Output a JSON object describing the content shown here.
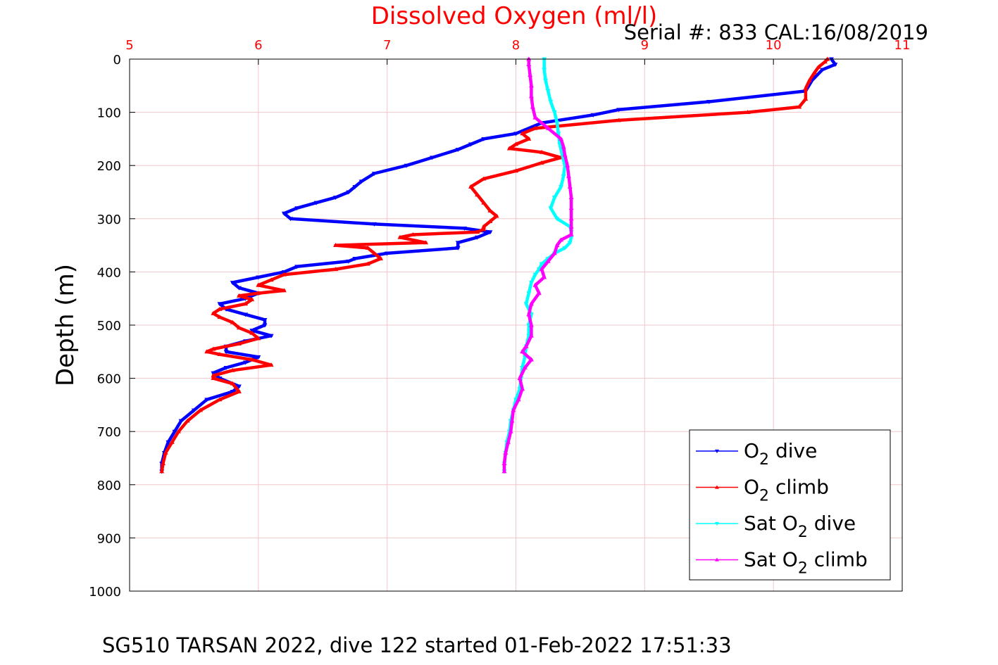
{
  "chart_data": {
    "type": "line",
    "title": "Dissolved Oxygen (ml/l)",
    "serial_text": "Serial #: 833  CAL:16/08/2019",
    "ylabel": "Depth (m)",
    "footer": "SG510 TARSAN 2022, dive 122 started 01-Feb-2022 17:51:33",
    "xlim": [
      5,
      11
    ],
    "ylim": [
      0,
      1000
    ],
    "y_reversed": true,
    "x_axis_position": "top",
    "grid": true,
    "legend_position": "bottom-right",
    "x_ticks": [
      "5",
      "6",
      "7",
      "8",
      "9",
      "10",
      "11"
    ],
    "y_ticks": [
      "0",
      "100",
      "200",
      "300",
      "400",
      "500",
      "600",
      "700",
      "800",
      "900",
      "1000"
    ],
    "colors": {
      "title": "#ff0000",
      "x_ticks": "#ff0000",
      "grid": "#f2c6cc",
      "axis": "#000000"
    },
    "series": [
      {
        "legend": {
          "base": "O",
          "sub": "2",
          "rest": " dive"
        },
        "color": "#0000ff",
        "marker": "triangle-down",
        "depth": [
          0,
          10,
          20,
          40,
          60,
          80,
          95,
          105,
          120,
          140,
          150,
          160,
          170,
          185,
          200,
          215,
          230,
          240,
          250,
          260,
          270,
          280,
          290,
          300,
          310,
          318,
          325,
          335,
          345,
          355,
          365,
          375,
          380,
          390,
          400,
          410,
          420,
          430,
          440,
          450,
          460,
          470,
          480,
          490,
          500,
          510,
          520,
          530,
          540,
          550,
          560,
          570,
          580,
          590,
          600,
          615,
          625,
          640,
          660,
          680,
          700,
          720,
          740,
          760,
          775
        ],
        "values": [
          10.45,
          10.48,
          10.38,
          10.3,
          10.25,
          9.5,
          8.8,
          8.6,
          8.2,
          8.0,
          7.75,
          7.65,
          7.55,
          7.35,
          7.15,
          6.9,
          6.8,
          6.75,
          6.7,
          6.6,
          6.45,
          6.3,
          6.2,
          6.25,
          6.9,
          7.6,
          7.8,
          7.7,
          7.55,
          7.55,
          7.0,
          6.75,
          6.7,
          6.3,
          6.2,
          6.0,
          5.8,
          5.85,
          6.0,
          5.9,
          5.7,
          5.75,
          5.9,
          6.05,
          6.05,
          5.95,
          6.1,
          5.9,
          5.75,
          5.75,
          6.0,
          5.9,
          5.75,
          5.65,
          5.7,
          5.85,
          5.8,
          5.6,
          5.5,
          5.4,
          5.35,
          5.3,
          5.27,
          5.25,
          5.25
        ]
      },
      {
        "legend": {
          "base": "O",
          "sub": "2",
          "rest": " climb"
        },
        "color": "#ff0000",
        "marker": "triangle-up",
        "depth": [
          775,
          760,
          740,
          720,
          700,
          680,
          660,
          640,
          625,
          610,
          600,
          595,
          585,
          575,
          565,
          555,
          550,
          545,
          535,
          525,
          515,
          505,
          495,
          485,
          478,
          470,
          460,
          452,
          445,
          440,
          435,
          425,
          415,
          405,
          395,
          385,
          375,
          365,
          355,
          350,
          345,
          335,
          330,
          325,
          320,
          315,
          305,
          295,
          285,
          270,
          255,
          240,
          225,
          210,
          195,
          185,
          175,
          168,
          160,
          150,
          140,
          130,
          115,
          100,
          90,
          75,
          55,
          40,
          25,
          15,
          5,
          0
        ],
        "values": [
          5.25,
          5.26,
          5.28,
          5.33,
          5.38,
          5.45,
          5.55,
          5.7,
          5.85,
          5.8,
          5.65,
          5.65,
          5.8,
          6.1,
          5.95,
          5.7,
          5.6,
          5.65,
          5.85,
          6.0,
          5.95,
          5.85,
          5.8,
          5.7,
          5.65,
          5.7,
          5.9,
          5.95,
          5.85,
          6.0,
          6.2,
          6.0,
          6.1,
          6.2,
          6.6,
          6.85,
          6.95,
          6.9,
          6.85,
          6.6,
          7.3,
          7.1,
          7.2,
          7.7,
          7.75,
          7.75,
          7.8,
          7.85,
          7.8,
          7.75,
          7.7,
          7.65,
          7.75,
          8.0,
          8.2,
          8.35,
          8.2,
          7.95,
          8.0,
          8.1,
          8.05,
          8.15,
          8.8,
          9.8,
          10.2,
          10.25,
          10.25,
          10.28,
          10.32,
          10.35,
          10.4,
          10.42
        ]
      },
      {
        "legend": {
          "base": "Sat O",
          "sub": "2",
          "rest": " dive"
        },
        "color": "#00ffff",
        "marker": "triangle-down",
        "depth": [
          0,
          20,
          40,
          60,
          80,
          100,
          120,
          140,
          160,
          180,
          200,
          220,
          240,
          260,
          280,
          300,
          315,
          325,
          335,
          345,
          355,
          365,
          375,
          385,
          395,
          405,
          420,
          440,
          460,
          480,
          500,
          520,
          540,
          560,
          580,
          600,
          620,
          640,
          660,
          680,
          700,
          720,
          740,
          760,
          775
        ],
        "values": [
          8.22,
          8.22,
          8.23,
          8.25,
          8.27,
          8.3,
          8.32,
          8.33,
          8.34,
          8.36,
          8.38,
          8.37,
          8.35,
          8.3,
          8.27,
          8.32,
          8.42,
          8.43,
          8.43,
          8.42,
          8.38,
          8.3,
          8.25,
          8.2,
          8.18,
          8.15,
          8.12,
          8.1,
          8.08,
          8.12,
          8.1,
          8.1,
          8.08,
          8.07,
          8.05,
          8.04,
          8.03,
          8.0,
          7.98,
          7.96,
          7.95,
          7.93,
          7.92,
          7.91,
          7.91
        ]
      },
      {
        "legend": {
          "base": "Sat O",
          "sub": "2",
          "rest": " climb"
        },
        "color": "#ff00ff",
        "marker": "triangle-up",
        "depth": [
          775,
          760,
          740,
          720,
          700,
          680,
          660,
          640,
          620,
          600,
          580,
          565,
          550,
          540,
          520,
          500,
          480,
          460,
          440,
          425,
          410,
          395,
          380,
          365,
          350,
          340,
          330,
          315,
          300,
          280,
          260,
          240,
          220,
          200,
          180,
          165,
          150,
          130,
          110,
          90,
          70,
          50,
          30,
          10,
          0
        ],
        "values": [
          7.91,
          7.91,
          7.92,
          7.94,
          7.96,
          7.97,
          7.98,
          8.02,
          8.05,
          8.03,
          8.07,
          8.12,
          8.05,
          8.08,
          8.12,
          8.12,
          8.1,
          8.12,
          8.18,
          8.15,
          8.22,
          8.2,
          8.25,
          8.3,
          8.32,
          8.35,
          8.43,
          8.43,
          8.43,
          8.43,
          8.43,
          8.42,
          8.41,
          8.4,
          8.38,
          8.37,
          8.35,
          8.25,
          8.15,
          8.13,
          8.12,
          8.12,
          8.11,
          8.1,
          8.1
        ]
      }
    ]
  }
}
